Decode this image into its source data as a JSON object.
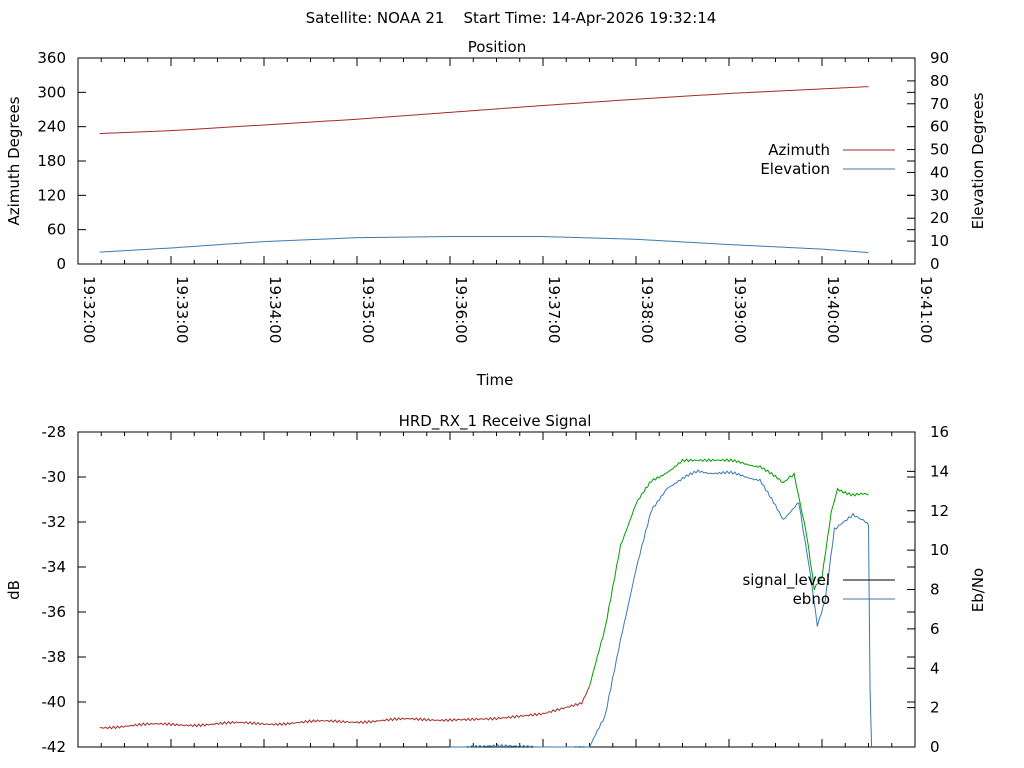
{
  "header": {
    "title": "Satellite: NOAA 21    Start Time: 14-Apr-2026 19:32:14"
  },
  "chart_data": [
    {
      "type": "line",
      "title": "Position",
      "xlabel": "Time",
      "ylabel": "Azimuth Degrees",
      "y2label": "Elevation Degrees",
      "x_ticks": [
        "19:32:00",
        "19:33:00",
        "19:34:00",
        "19:35:00",
        "19:36:00",
        "19:37:00",
        "19:38:00",
        "19:39:00",
        "19:40:00",
        "19:41:00"
      ],
      "ylim": [
        0,
        360
      ],
      "y_ticks": [
        "0",
        "60",
        "120",
        "180",
        "240",
        "300",
        "360"
      ],
      "y2lim": [
        0,
        90
      ],
      "y2_ticks": [
        "0",
        "10",
        "20",
        "30",
        "40",
        "50",
        "60",
        "70",
        "80",
        "90"
      ],
      "legend_position": "right",
      "series": [
        {
          "name": "Azimuth",
          "axis": "left",
          "color": "#a52a2a",
          "points": [
            [
              "19:32:14",
              228
            ],
            [
              "19:33:00",
              233
            ],
            [
              "19:34:00",
              243
            ],
            [
              "19:35:00",
              253
            ],
            [
              "19:36:00",
              265
            ],
            [
              "19:37:00",
              277
            ],
            [
              "19:38:00",
              288
            ],
            [
              "19:39:00",
              298
            ],
            [
              "19:40:00",
              306
            ],
            [
              "19:40:30",
              310
            ]
          ]
        },
        {
          "name": "Elevation",
          "axis": "right",
          "color": "#3a7ab0",
          "points": [
            [
              "19:32:14",
              5.2
            ],
            [
              "19:33:00",
              7
            ],
            [
              "19:34:00",
              9.8
            ],
            [
              "19:35:00",
              11.5
            ],
            [
              "19:36:00",
              12
            ],
            [
              "19:37:00",
              12
            ],
            [
              "19:38:00",
              10.8
            ],
            [
              "19:39:00",
              8.5
            ],
            [
              "19:40:00",
              6.5
            ],
            [
              "19:40:30",
              5
            ]
          ]
        }
      ]
    },
    {
      "type": "line",
      "title": "HRD_RX_1 Receive Signal",
      "ylabel": "dB",
      "y2label": "Eb/No",
      "ylim": [
        -42,
        -28
      ],
      "y_ticks": [
        "-42",
        "-40",
        "-38",
        "-36",
        "-34",
        "-32",
        "-30",
        "-28"
      ],
      "y2lim": [
        0,
        16
      ],
      "y2_ticks": [
        "0",
        "2",
        "4",
        "6",
        "8",
        "10",
        "12",
        "14",
        "16"
      ],
      "legend_position": "right",
      "series": [
        {
          "name": "signal_level",
          "axis": "left",
          "color": "#a52a2a",
          "color_high": "#00a000",
          "points": [
            [
              "19:32:14",
              -41.1
            ],
            [
              "19:33:00",
              -41.0
            ],
            [
              "19:34:00",
              -40.95
            ],
            [
              "19:35:00",
              -40.85
            ],
            [
              "19:36:00",
              -40.75
            ],
            [
              "19:36:30",
              -40.7
            ],
            [
              "19:37:00",
              -40.5
            ],
            [
              "19:37:25",
              -40.0
            ],
            [
              "19:37:30",
              -39.3
            ],
            [
              "19:37:40",
              -36.8
            ],
            [
              "19:37:50",
              -33.0
            ],
            [
              "19:38:00",
              -31.2
            ],
            [
              "19:38:10",
              -30.2
            ],
            [
              "19:38:30",
              -29.3
            ],
            [
              "19:39:00",
              -29.3
            ],
            [
              "19:39:20",
              -29.5
            ],
            [
              "19:39:35",
              -30.3
            ],
            [
              "19:39:42",
              -29.9
            ],
            [
              "19:39:50",
              -32.5
            ],
            [
              "19:39:55",
              -35.0
            ],
            [
              "19:40:00",
              -34.5
            ],
            [
              "19:40:06",
              -31.5
            ],
            [
              "19:40:10",
              -30.5
            ],
            [
              "19:40:20",
              -30.8
            ],
            [
              "19:40:30",
              -30.8
            ]
          ]
        },
        {
          "name": "ebno",
          "axis": "right",
          "color": "#3a7ab0",
          "points": [
            [
              "19:36:00",
              0
            ],
            [
              "19:37:30",
              0
            ],
            [
              "19:37:40",
              1.5
            ],
            [
              "19:37:50",
              5.5
            ],
            [
              "19:38:00",
              9.0
            ],
            [
              "19:38:10",
              12.0
            ],
            [
              "19:38:20",
              13.2
            ],
            [
              "19:38:40",
              14.0
            ],
            [
              "19:39:00",
              13.9
            ],
            [
              "19:39:20",
              13.6
            ],
            [
              "19:39:35",
              11.5
            ],
            [
              "19:39:45",
              12.5
            ],
            [
              "19:39:52",
              9.0
            ],
            [
              "19:39:57",
              6.2
            ],
            [
              "19:40:02",
              7.5
            ],
            [
              "19:40:08",
              11.0
            ],
            [
              "19:40:20",
              11.8
            ],
            [
              "19:40:28",
              11.5
            ],
            [
              "19:40:30",
              11.2
            ],
            [
              "19:40:31",
              3.0
            ],
            [
              "19:40:32",
              0
            ]
          ]
        }
      ]
    }
  ]
}
